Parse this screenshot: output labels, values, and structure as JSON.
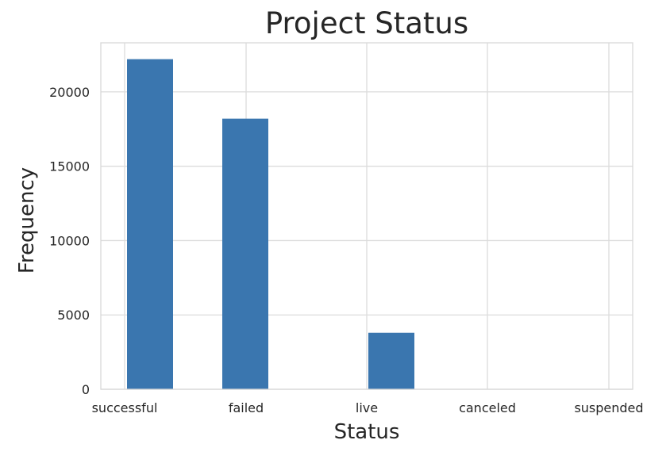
{
  "chart_data": {
    "type": "bar",
    "title": "Project Status",
    "xlabel": "Status",
    "ylabel": "Frequency",
    "categories": [
      "successful",
      "failed",
      "live",
      "canceled",
      "suspended"
    ],
    "values": [
      22200,
      18200,
      3800,
      0,
      0
    ],
    "yticks": [
      0,
      5000,
      10000,
      15000,
      20000
    ],
    "ylim": [
      0,
      23300
    ],
    "grid": true,
    "bar_color": "#3a76af"
  }
}
